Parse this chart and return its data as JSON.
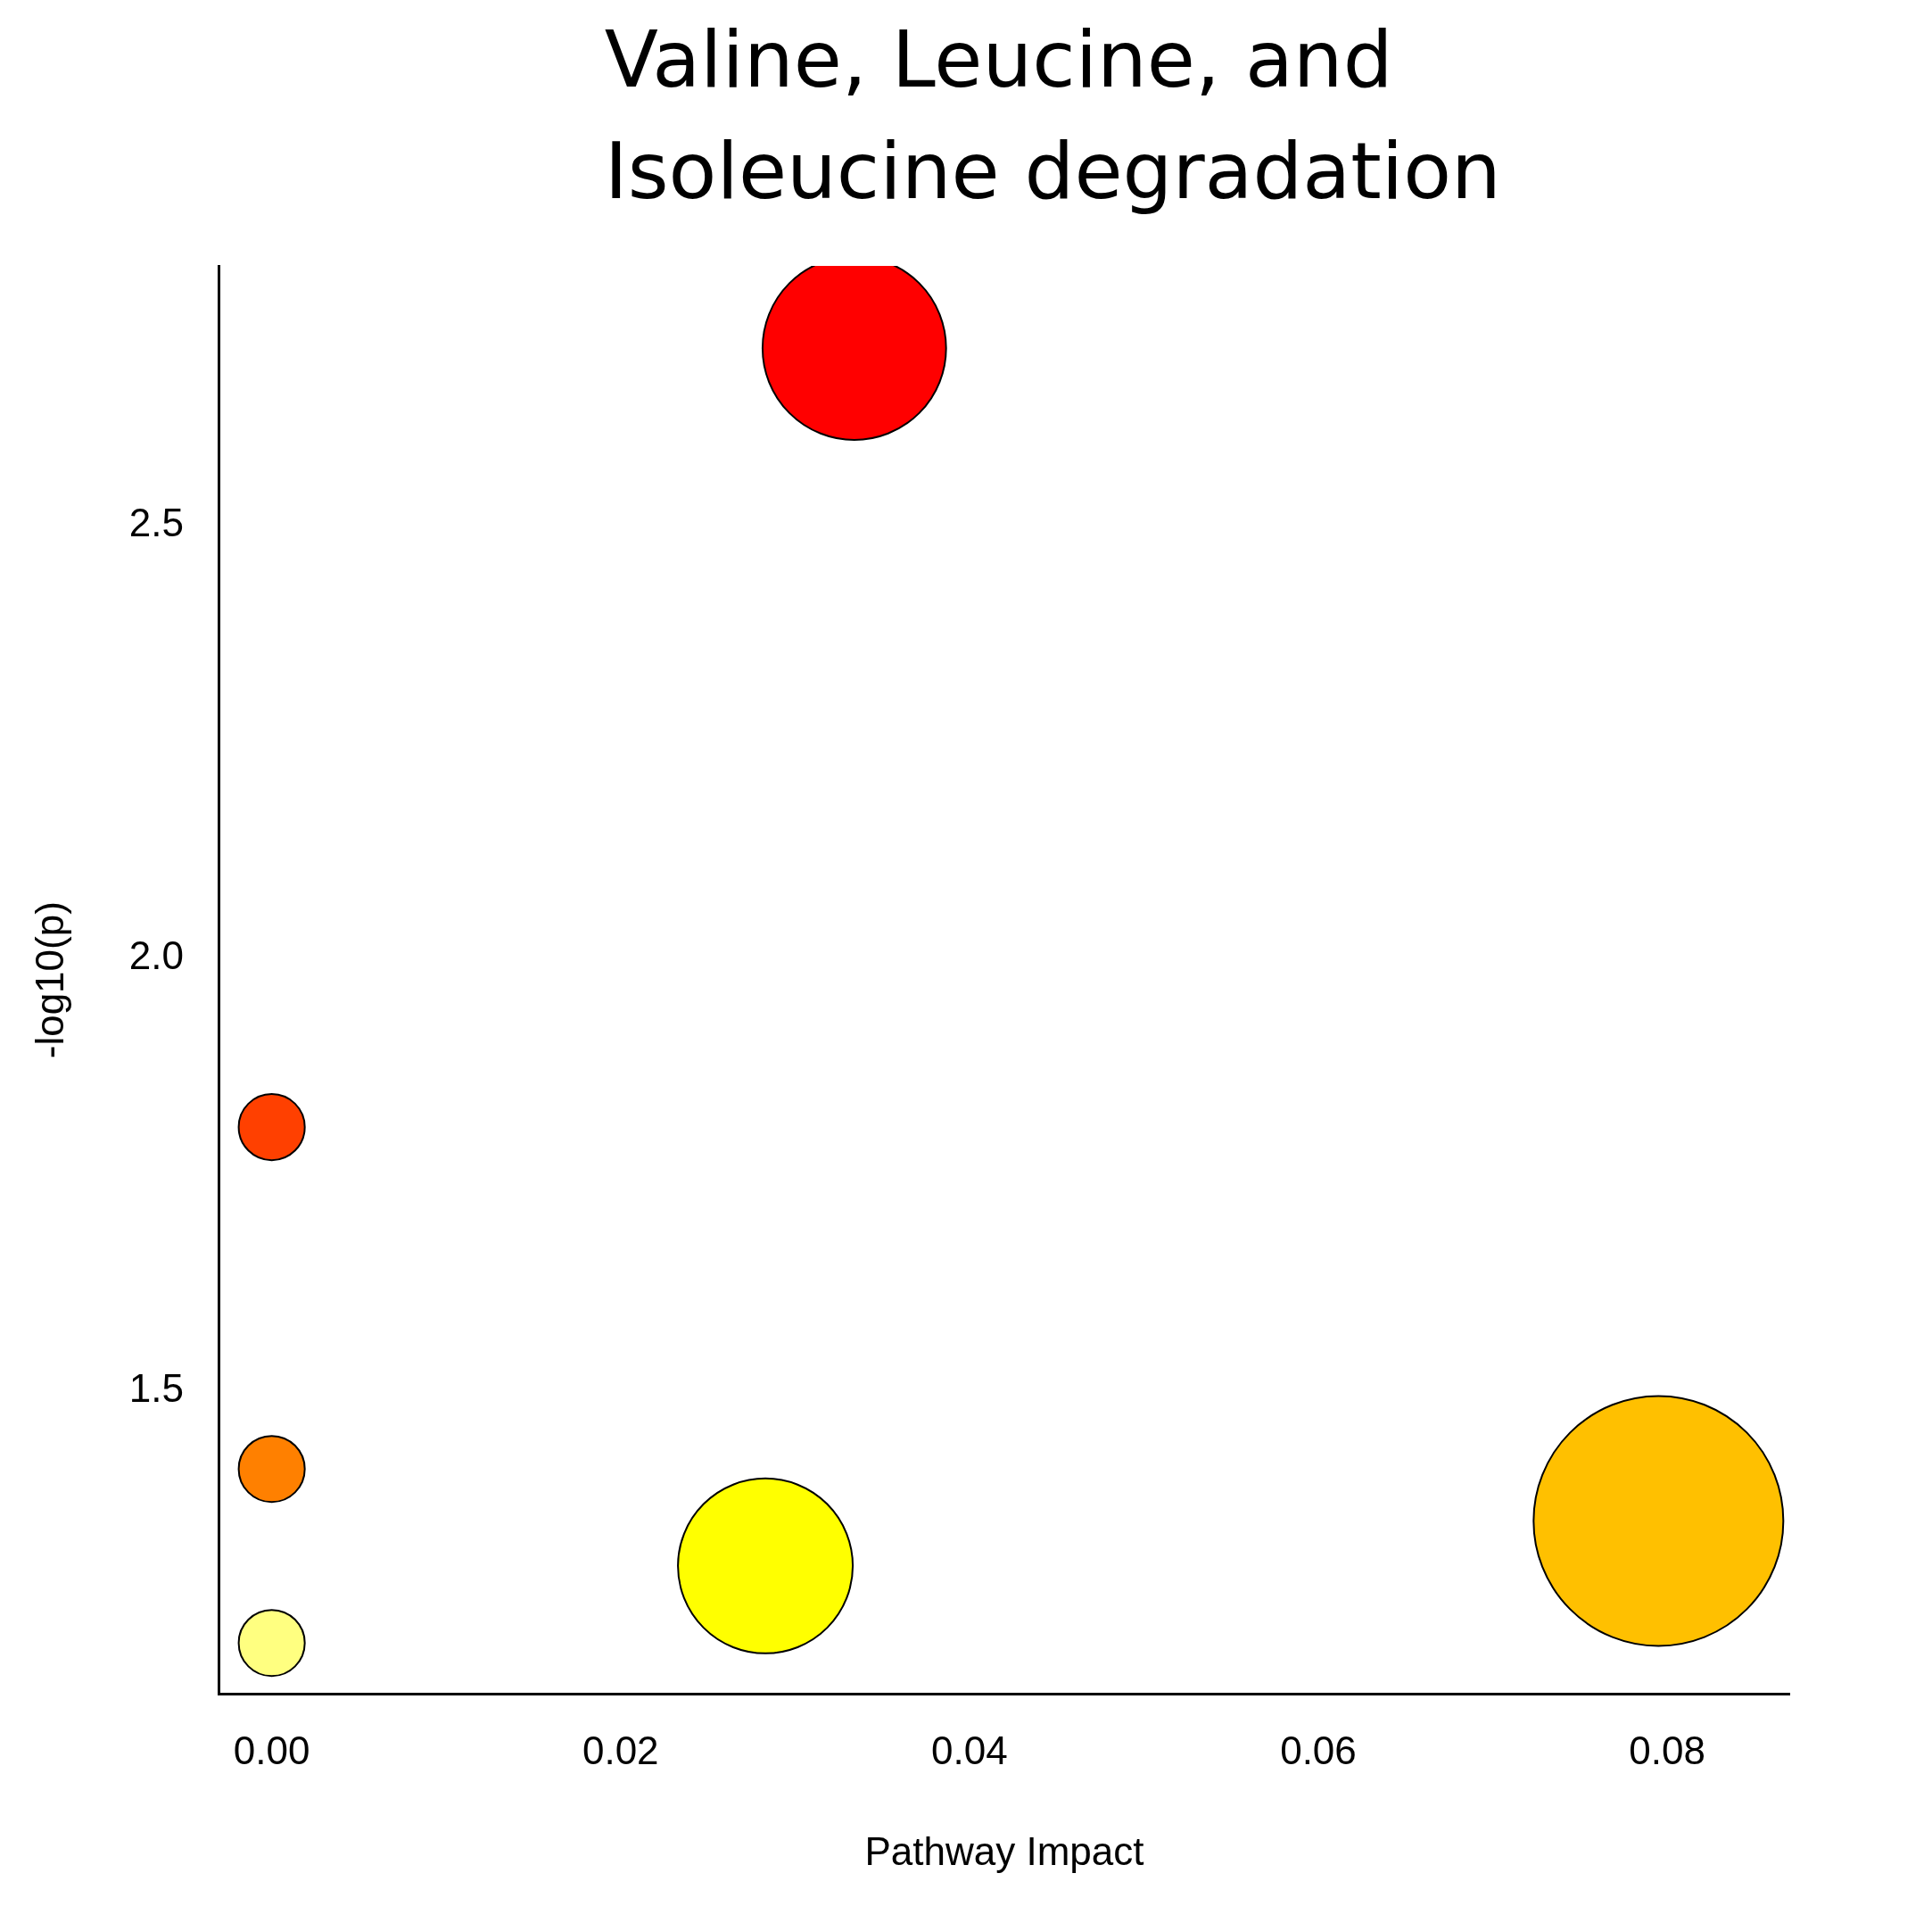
{
  "chart_data": {
    "type": "bubble",
    "xlabel": "Pathway Impact",
    "ylabel": "-log10(p)",
    "x": [
      0.0334,
      0.0,
      0.0,
      0.0,
      0.0283,
      0.0795
    ],
    "values": [
      2.705,
      1.805,
      1.41,
      1.209,
      1.298,
      1.35
    ],
    "sizes": [
      0.54,
      0.07,
      0.07,
      0.07,
      0.49,
      1
    ],
    "colors": [
      "#ff0000",
      "#ff4000",
      "#ff8000",
      "#ffff80",
      "#ffff00",
      "#ffc000"
    ],
    "xlim": [
      -0.003,
      0.087
    ],
    "ylim": [
      1.15,
      2.8
    ],
    "xticks": [
      {
        "value": 0,
        "label": "0.00"
      },
      {
        "value": 0.02,
        "label": "0.02"
      },
      {
        "value": 0.04,
        "label": "0.04"
      },
      {
        "value": 0.06,
        "label": "0.06"
      },
      {
        "value": 0.08,
        "label": "0.08"
      }
    ],
    "yticks": [
      {
        "value": 1.5,
        "label": "1.5"
      },
      {
        "value": 2.0,
        "label": "2.0"
      },
      {
        "value": 2.5,
        "label": "2.5"
      }
    ],
    "grid": false,
    "legend": false,
    "annotations": [
      {
        "text": "Valine, Leucine, and Isoleucine degradation",
        "x": 0.0334,
        "y": 2.705
      }
    ]
  }
}
